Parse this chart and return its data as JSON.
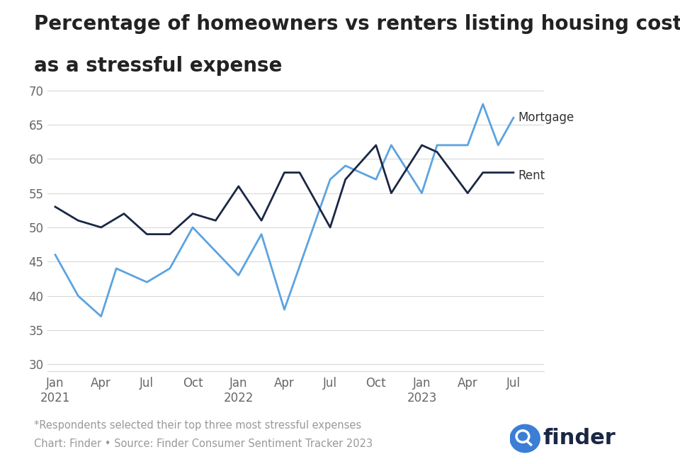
{
  "title_line1": "Percentage of homeowners vs renters listing housing costs",
  "title_line2": "as a stressful expense",
  "title_fontsize": 20,
  "footnote1": "*Respondents selected their top three most stressful expenses",
  "footnote2": "Chart: Finder • Source: Finder Consumer Sentiment Tracker 2023",
  "background_color": "#ffffff",
  "ylim": [
    29,
    71
  ],
  "yticks": [
    30,
    35,
    40,
    45,
    50,
    55,
    60,
    65,
    70
  ],
  "mortgage_color": "#5ba3e0",
  "rent_color": "#1a2744",
  "mortgage_label": "Mortgage",
  "rent_label": "Rent",
  "quarter_positions": [
    0,
    3,
    6,
    9,
    12,
    15,
    18,
    21,
    24,
    27,
    30
  ],
  "quarter_labels": [
    "Jan\n2021",
    "Apr",
    "Jul",
    "Oct",
    "Jan\n2022",
    "Apr",
    "Jul",
    "Oct",
    "Jan\n2023",
    "Apr",
    "Jul"
  ],
  "mortgage_x": [
    0,
    1.5,
    3,
    4,
    6,
    7.5,
    9,
    12,
    13.5,
    15,
    18,
    19,
    21,
    22,
    24,
    25,
    27,
    28,
    29,
    30
  ],
  "mortgage_y": [
    46,
    40,
    37,
    44,
    42,
    44,
    50,
    43,
    49,
    38,
    57,
    59,
    57,
    62,
    55,
    62,
    62,
    68,
    62,
    66
  ],
  "rent_x": [
    0,
    1.5,
    3,
    4.5,
    6,
    7.5,
    9,
    10.5,
    12,
    13.5,
    15,
    16,
    18,
    19,
    21,
    22,
    24,
    25,
    27,
    28,
    28.5,
    30
  ],
  "rent_y": [
    53,
    51,
    50,
    52,
    49,
    49,
    52,
    51,
    56,
    51,
    58,
    58,
    50,
    57,
    62,
    55,
    62,
    61,
    55,
    58,
    58,
    58
  ],
  "finder_blue": "#3b7ed5",
  "finder_dark": "#1a2744"
}
